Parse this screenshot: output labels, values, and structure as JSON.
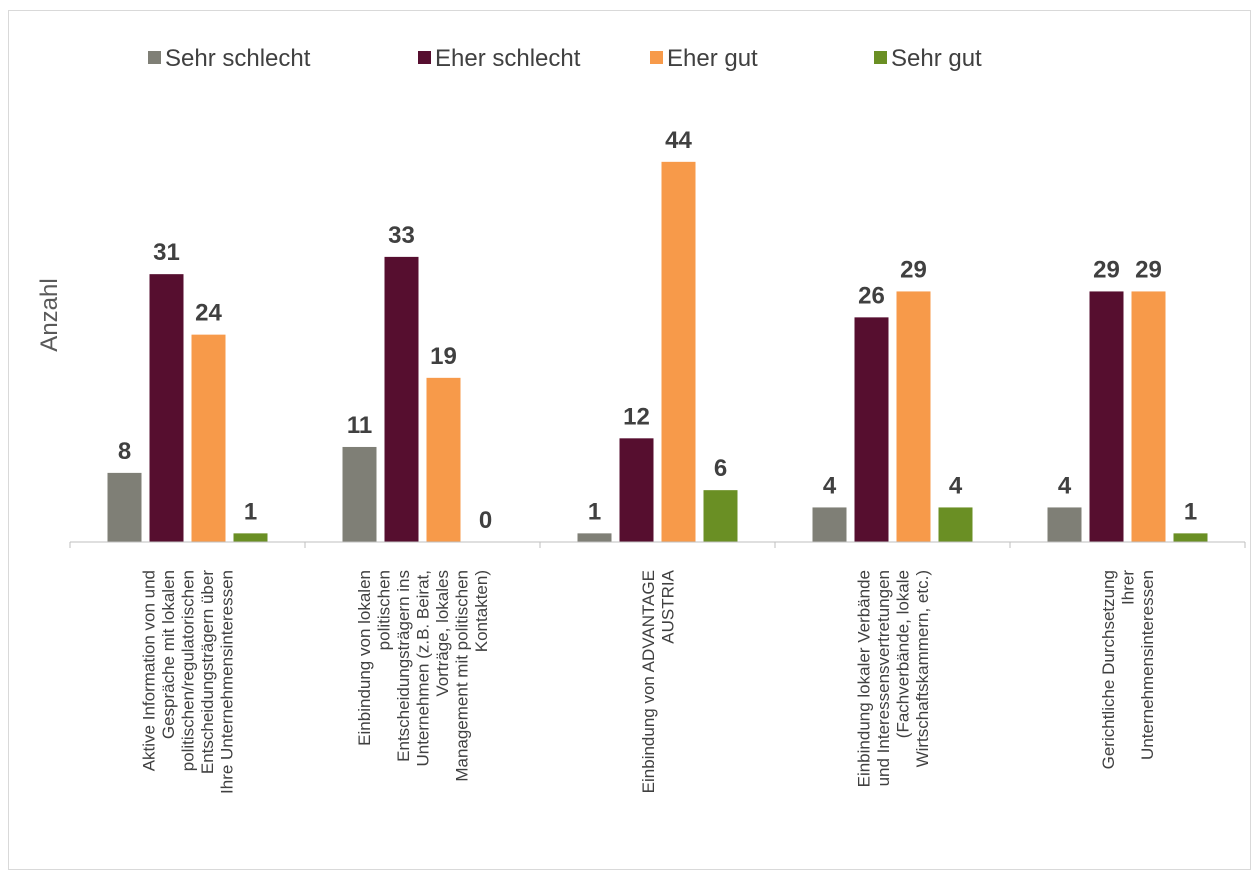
{
  "chart_data": {
    "type": "bar",
    "title": "",
    "ylabel": "Anzahl",
    "xlabel": "",
    "ylim": [
      0,
      47
    ],
    "grid": false,
    "legend_position": "top",
    "categories": [
      [
        "Aktive Information von und",
        "Gespräche mit lokalen",
        "politischen/regulatorischen",
        "Entscheidungsträgern über",
        "Ihre Unternehmensinteressen"
      ],
      [
        "Einbindung von lokalen",
        "politischen",
        "Entscheidungsträgern ins",
        "Unternehmen (z.B. Beirat,",
        "Vorträge, lokales",
        "Management mit politischen",
        "Kontakten)"
      ],
      [
        "Einbindung von ADVANTAGE",
        "AUSTRIA"
      ],
      [
        "Einbindung lokaler Verbände",
        "und Interessensvertretungen",
        "(Fachverbände, lokale",
        "Wirtschaftskammern, etc.)"
      ],
      [
        "Gerichtliche Durchsetzung",
        "Ihrer",
        "Unternehmensinteressen"
      ]
    ],
    "series": [
      {
        "name": "Sehr schlecht",
        "color": "#7f7f76",
        "values": [
          8,
          11,
          1,
          4,
          4
        ]
      },
      {
        "name": "Eher schlecht",
        "color": "#560e2f",
        "values": [
          31,
          33,
          12,
          26,
          29
        ]
      },
      {
        "name": "Eher gut",
        "color": "#f79a4a",
        "values": [
          24,
          19,
          44,
          29,
          29
        ]
      },
      {
        "name": "Sehr gut",
        "color": "#6a8f24",
        "values": [
          1,
          0,
          6,
          4,
          1
        ]
      }
    ]
  }
}
